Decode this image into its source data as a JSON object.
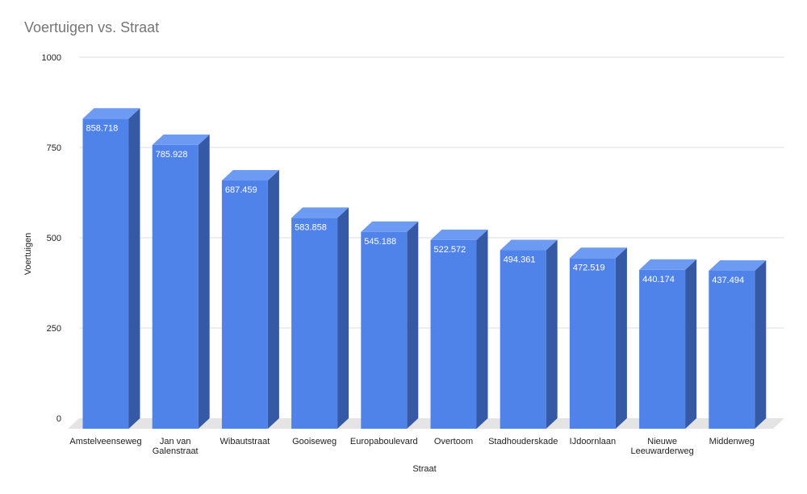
{
  "chart_data": {
    "type": "bar",
    "style": "3d-column",
    "title": "Voertuigen vs. Straat",
    "xlabel": "Straat",
    "ylabel": "Voertuigen",
    "ylim": [
      0,
      1000
    ],
    "yticks": [
      0,
      250,
      500,
      750,
      1000
    ],
    "grid": true,
    "legend": "none",
    "categories": [
      "Amstelveenseweg",
      "Jan van Galenstraat",
      "Wibautstraat",
      "Gooiseweg",
      "Europaboulevard",
      "Overtoom",
      "Stadhouderskade",
      "IJdoornlaan",
      "Nieuwe Leeuwarderweg",
      "Middenweg"
    ],
    "category_lines": [
      [
        "Amstelveenseweg"
      ],
      [
        "Jan van",
        "Galenstraat"
      ],
      [
        "Wibautstraat"
      ],
      [
        "Gooiseweg"
      ],
      [
        "Europaboulevard"
      ],
      [
        "Overtoom"
      ],
      [
        "Stadhouderskade"
      ],
      [
        "IJdoornlaan"
      ],
      [
        "Nieuwe",
        "Leeuwarderweg"
      ],
      [
        "Middenweg"
      ]
    ],
    "values": [
      858.718,
      785.928,
      687.459,
      583.858,
      545.188,
      522.572,
      494.361,
      472.519,
      440.174,
      437.494
    ],
    "value_labels": [
      "858.718",
      "785.928",
      "687.459",
      "583.858",
      "545.188",
      "522.572",
      "494.361",
      "472.519",
      "440.174",
      "437.494"
    ],
    "colors": {
      "bar_front": "#5083ea",
      "bar_top": "#6d9af2",
      "bar_side": "#3559a5",
      "floor": "#e4e4e4",
      "grid": "#dddddd"
    }
  }
}
